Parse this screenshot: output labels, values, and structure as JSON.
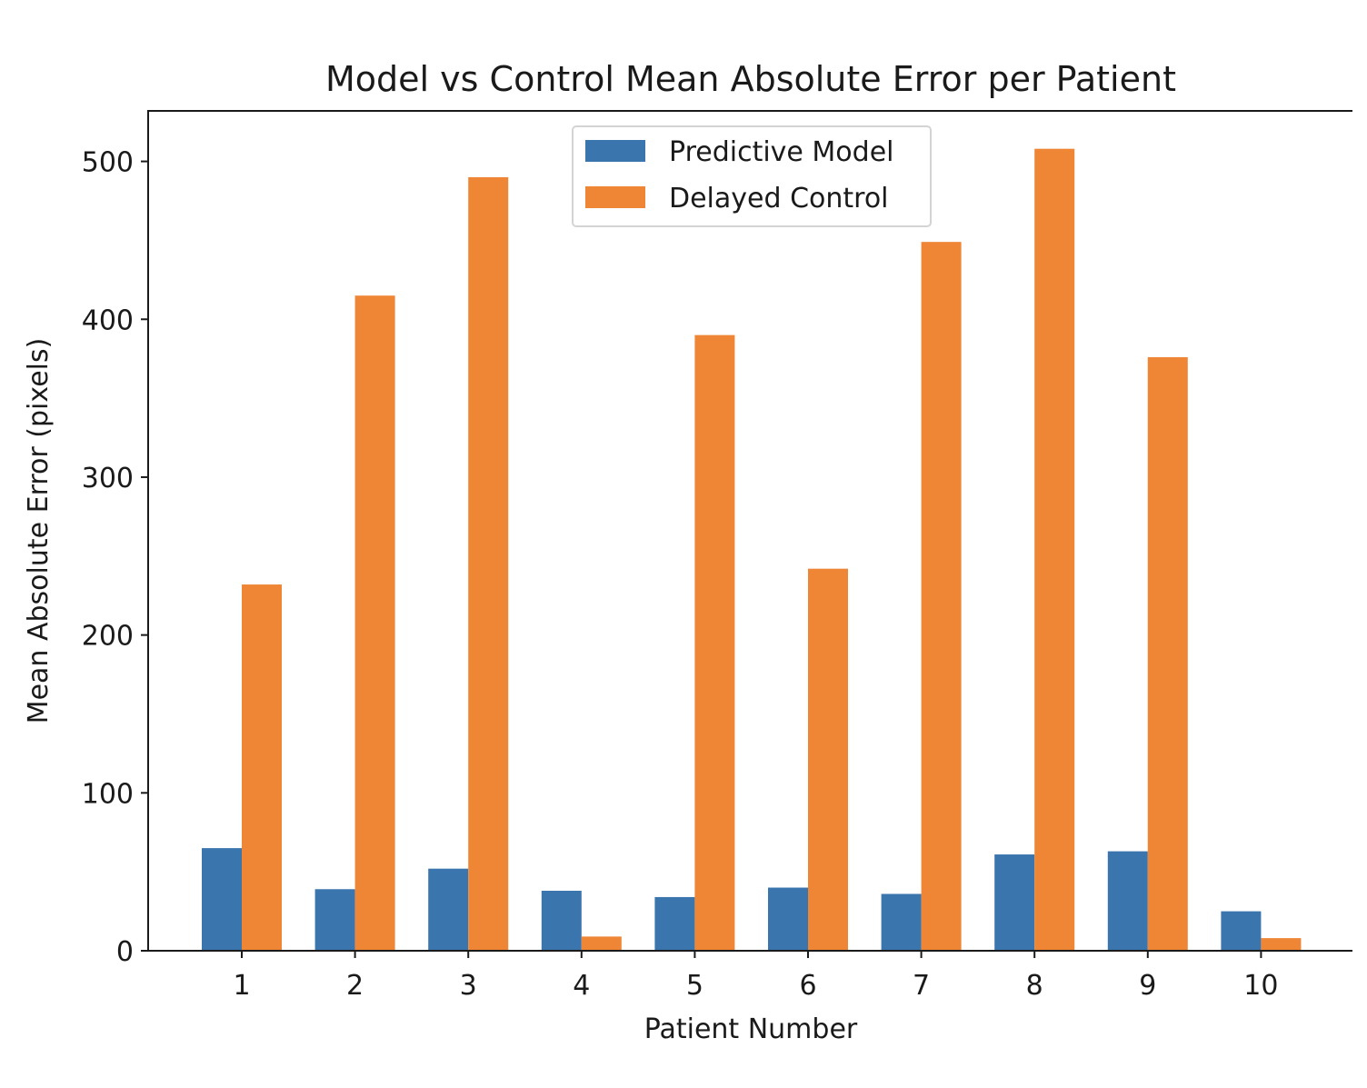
{
  "chart_data": {
    "type": "bar",
    "title": "Model vs Control Mean Absolute Error per Patient",
    "xlabel": "Patient Number",
    "ylabel": "Mean Absolute Error (pixels)",
    "categories": [
      "1",
      "2",
      "3",
      "4",
      "5",
      "6",
      "7",
      "8",
      "9",
      "10"
    ],
    "series": [
      {
        "name": "Predictive Model",
        "color": "#3a75ae",
        "values": [
          65,
          39,
          52,
          38,
          34,
          40,
          36,
          61,
          63,
          25
        ]
      },
      {
        "name": "Delayed Control",
        "color": "#ee8636",
        "values": [
          232,
          415,
          490,
          9,
          390,
          242,
          449,
          508,
          376,
          8
        ]
      }
    ],
    "ylim": [
      0,
      532
    ],
    "yticks": [
      0,
      100,
      200,
      300,
      400,
      500
    ],
    "grid": false,
    "legend": "upper center"
  }
}
